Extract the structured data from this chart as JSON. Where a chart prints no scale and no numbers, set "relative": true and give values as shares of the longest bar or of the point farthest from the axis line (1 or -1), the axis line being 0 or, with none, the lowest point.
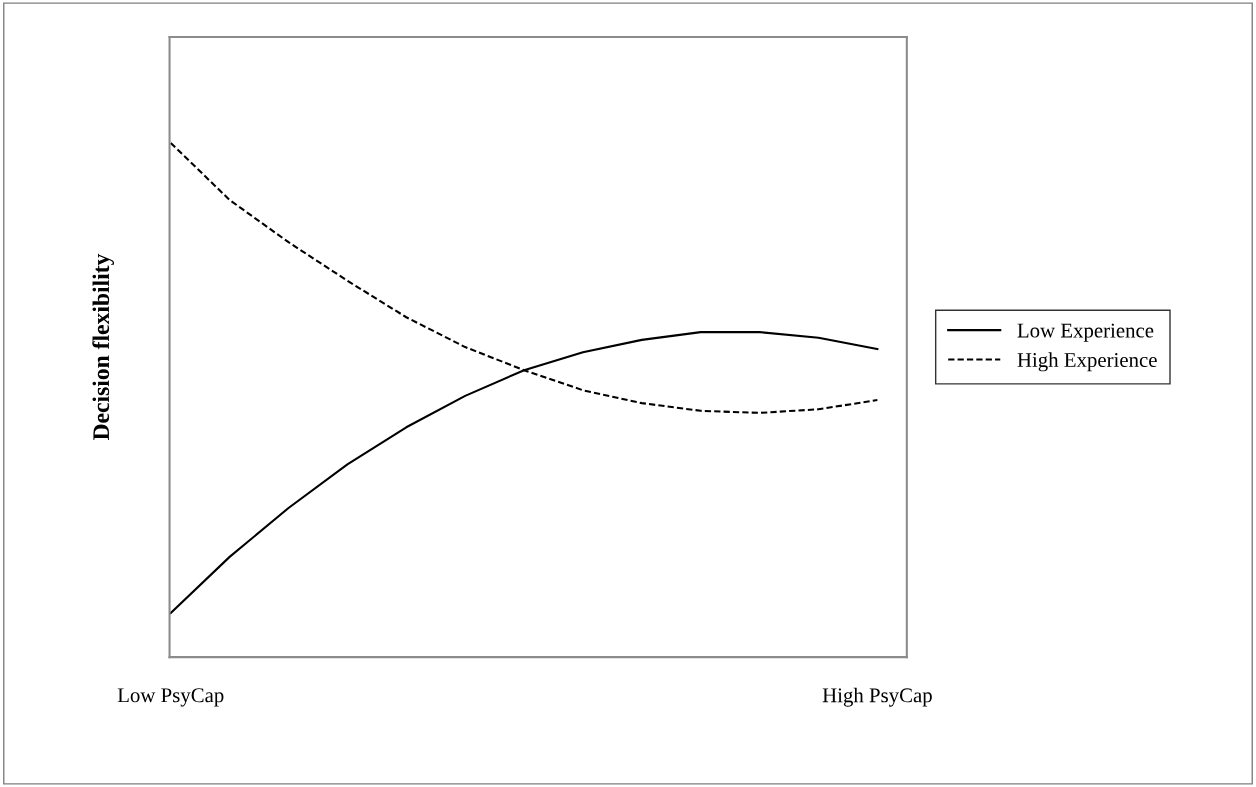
{
  "chart_data": {
    "type": "line",
    "ylabel": "Decision flexibility",
    "relative": true,
    "tick_labels": "x",
    "grid": false,
    "legend": "right",
    "marker": "none",
    "categories": [
      "Low PsyCap",
      null,
      null,
      null,
      null,
      null,
      null,
      null,
      null,
      null,
      null,
      null,
      "High PsyCap"
    ],
    "series": [
      {
        "name": "Low Experience",
        "color": "#000000",
        "line_style": "solid",
        "values": [
          0.086,
          0.195,
          0.29,
          0.375,
          0.447,
          0.508,
          0.558,
          0.593,
          0.617,
          0.632,
          0.632,
          0.621,
          0.599
        ]
      },
      {
        "name": "High Experience",
        "color": "#000000",
        "line_style": "dashed",
        "values": [
          1,
          0.889,
          0.807,
          0.732,
          0.661,
          0.603,
          0.558,
          0.519,
          0.494,
          0.479,
          0.475,
          0.482,
          0.5
        ]
      }
    ]
  }
}
